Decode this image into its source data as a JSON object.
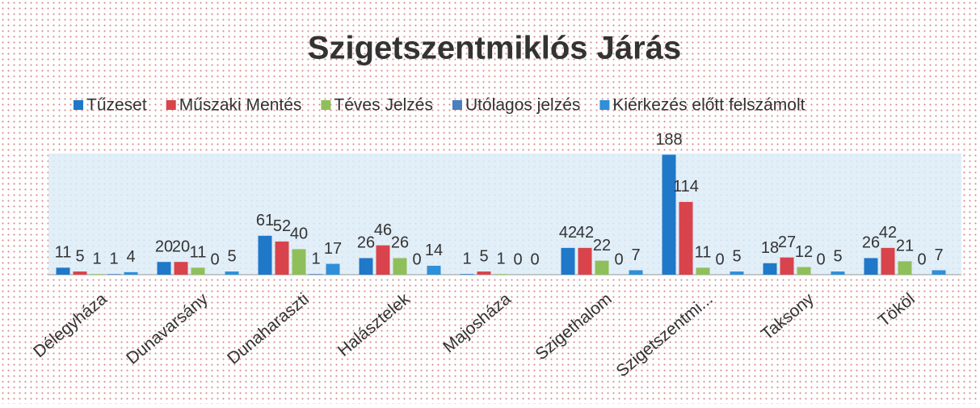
{
  "chart_data": {
    "type": "bar",
    "title": "Szigetszentmiklós Járás",
    "categories": [
      "Délegyháza",
      "Dunavarsány",
      "Dunaharaszti",
      "Halásztelek",
      "Majosháza",
      "Szigethalom",
      "Szigetszentmi...",
      "Taksony",
      "Tököl"
    ],
    "series": [
      {
        "name": "Tűzeset",
        "color": "#1f78c8",
        "values": [
          11,
          20,
          61,
          26,
          1,
          42,
          188,
          18,
          26
        ]
      },
      {
        "name": "Műszaki Mentés",
        "color": "#d9434b",
        "values": [
          5,
          20,
          52,
          46,
          5,
          42,
          114,
          27,
          42
        ]
      },
      {
        "name": "Téves Jelzés",
        "color": "#8fbf5a",
        "values": [
          1,
          11,
          40,
          26,
          1,
          22,
          11,
          12,
          21
        ]
      },
      {
        "name": "Utólagos jelzés",
        "color": "#4a7fc0",
        "values": [
          1,
          0,
          1,
          0,
          0,
          0,
          0,
          0,
          0
        ]
      },
      {
        "name": "Kiérkezés előtt felszámolt",
        "color": "#2f8fd8",
        "values": [
          4,
          5,
          17,
          14,
          0,
          7,
          5,
          5,
          7
        ]
      }
    ],
    "legend": "top"
  }
}
